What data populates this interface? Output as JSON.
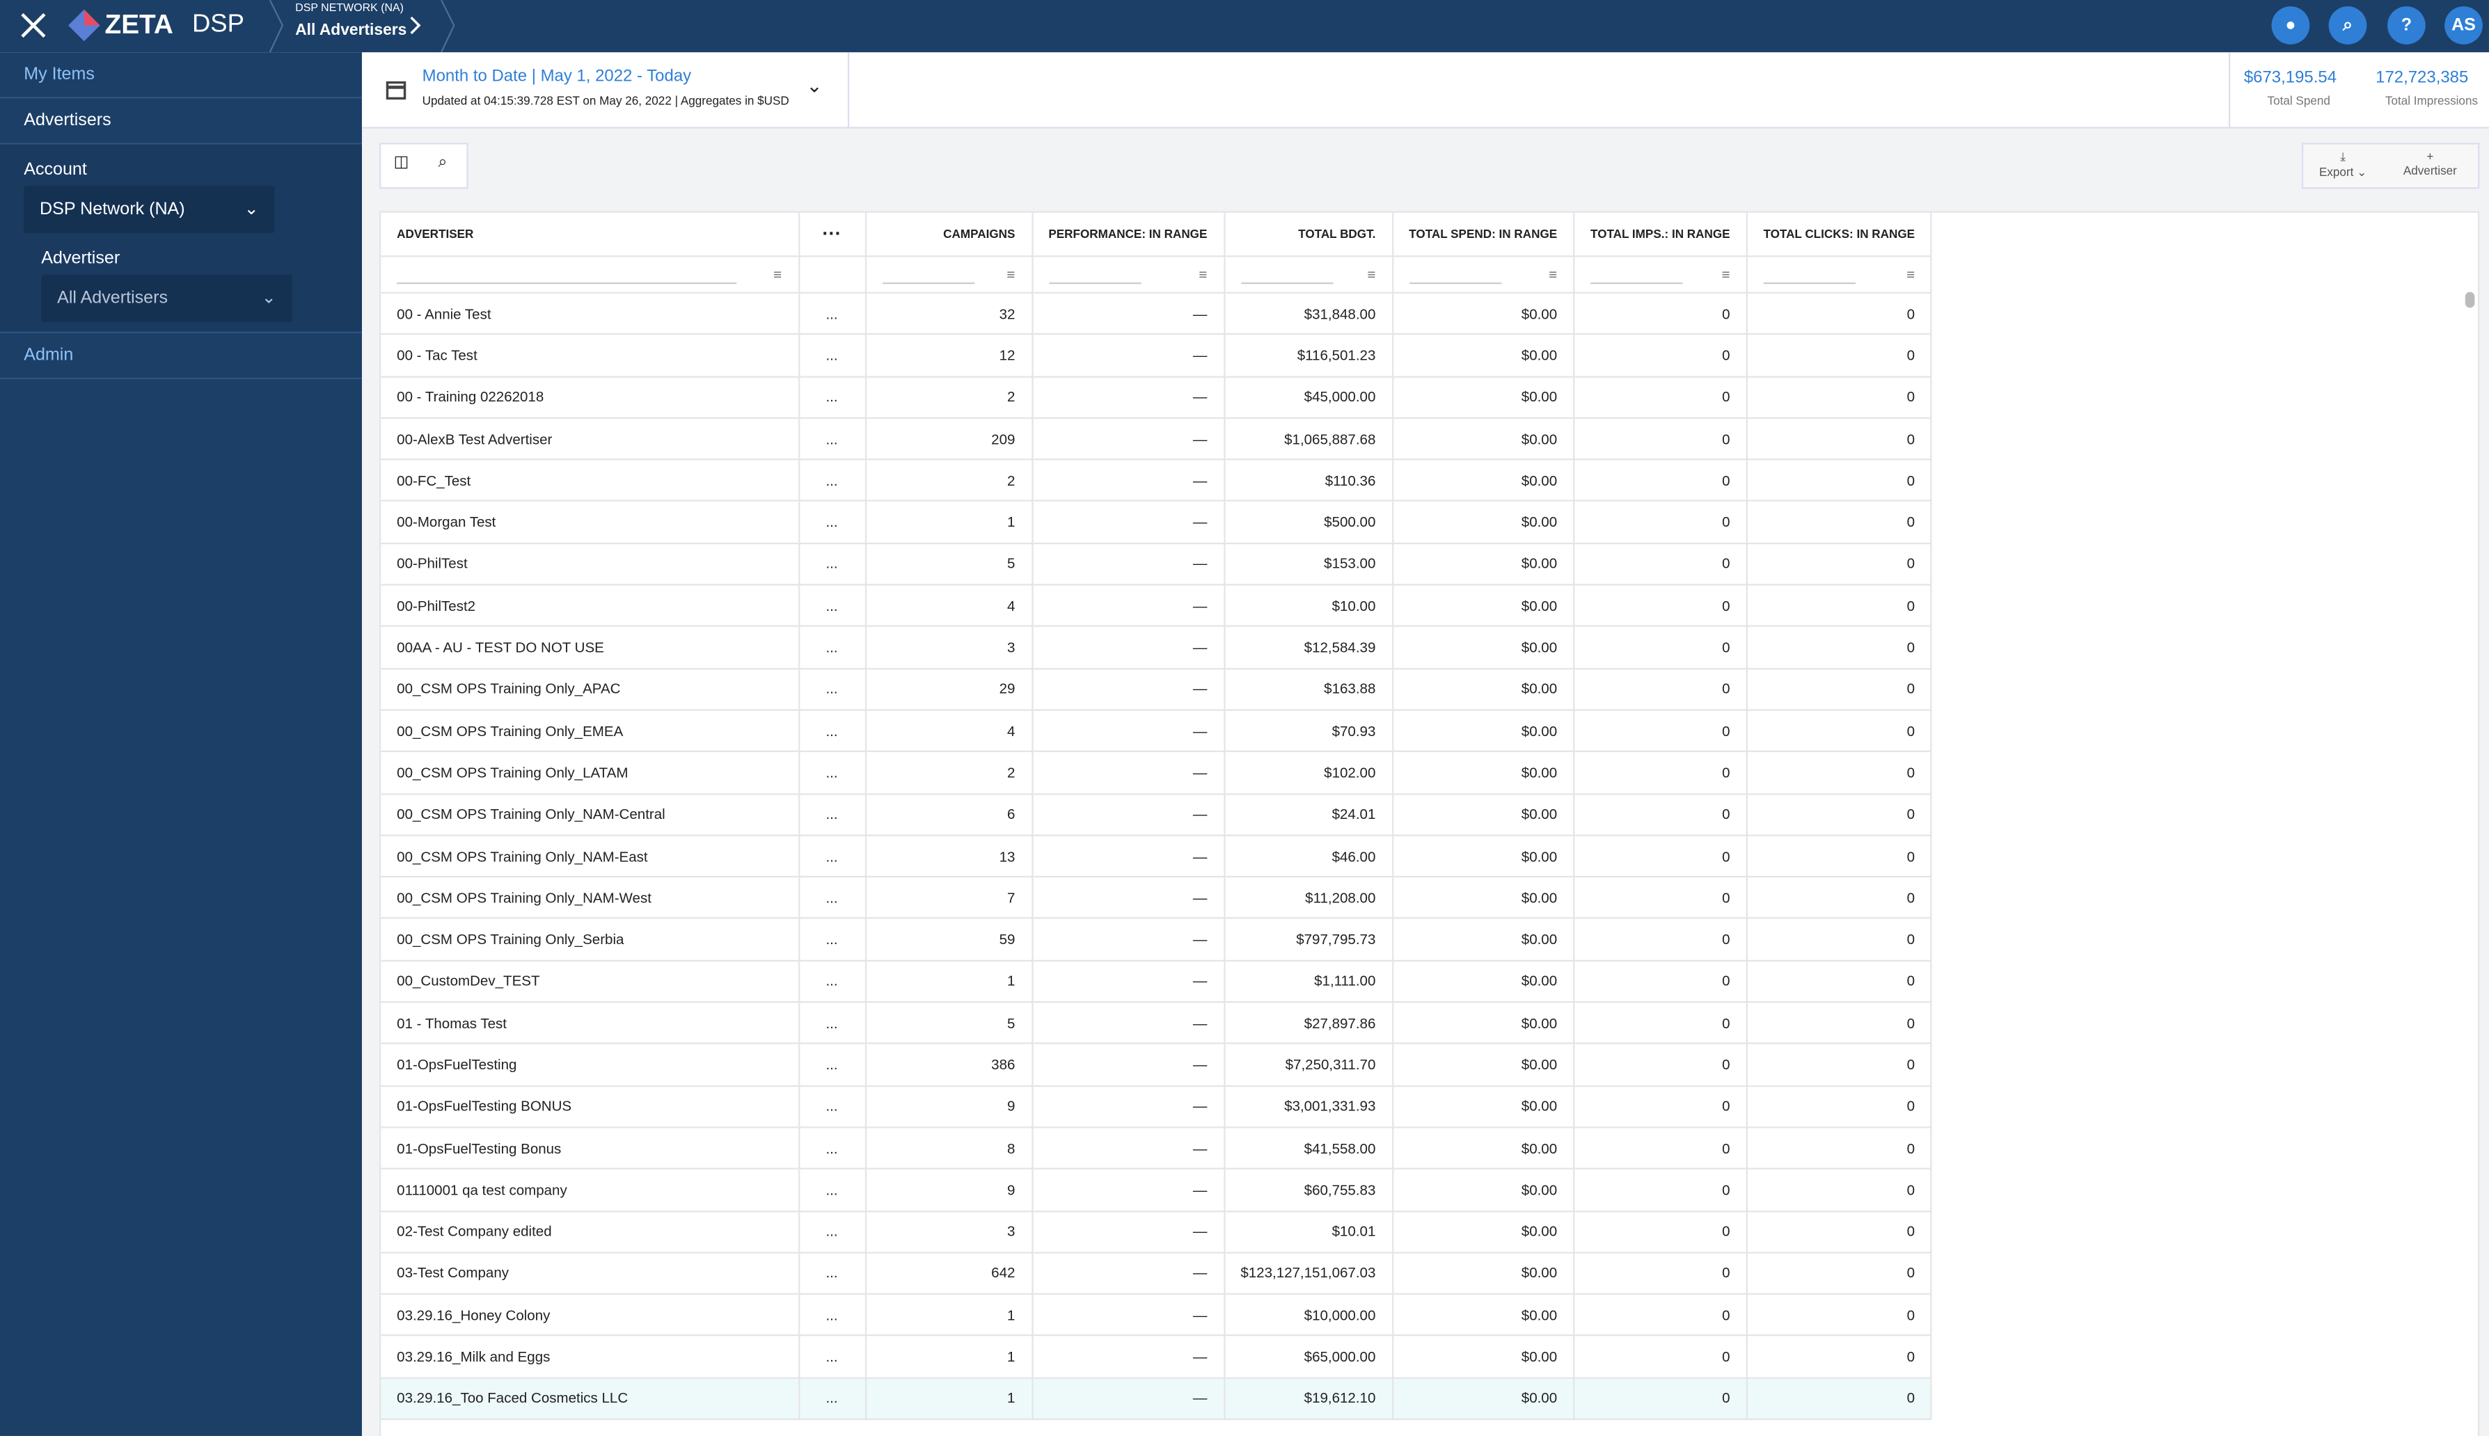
{
  "header": {
    "brand": "ZETA",
    "product": "DSP",
    "network": "DSP NETWORK (NA)",
    "crumb": "All Advertisers",
    "help": "?",
    "avatar": "AS"
  },
  "sidebar": {
    "my_items": "My Items",
    "advertisers": "Advertisers",
    "account_label": "Account",
    "account_value": "DSP Network (NA)",
    "advertiser_label": "Advertiser",
    "advertiser_value": "All Advertisers",
    "admin": "Admin"
  },
  "datebar": {
    "range": "Month to Date | May 1, 2022 - Today",
    "updated": "Updated at 04:15:39.728 EST on May 26, 2022 | Aggregates in $USD",
    "spend": "$673,195.54",
    "spend_label": "Total Spend",
    "imps": "172,723,385",
    "imps_label": "Total Impressions"
  },
  "toolbar": {
    "export": "Export",
    "add": "Advertiser"
  },
  "table": {
    "columns": [
      "ADVERTISER",
      "",
      "CAMPAIGNS",
      "PERFORMANCE: IN RANGE",
      "TOTAL BDGT.",
      "TOTAL SPEND: IN RANGE",
      "TOTAL IMPS.: IN RANGE",
      "TOTAL CLICKS: IN RANGE"
    ],
    "rows": [
      [
        "00 - Annie Test",
        "...",
        "32",
        "—",
        "$31,848.00",
        "$0.00",
        "0",
        "0"
      ],
      [
        "00 - Tac Test",
        "...",
        "12",
        "—",
        "$116,501.23",
        "$0.00",
        "0",
        "0"
      ],
      [
        "00 - Training 02262018",
        "...",
        "2",
        "—",
        "$45,000.00",
        "$0.00",
        "0",
        "0"
      ],
      [
        "00-AlexB Test Advertiser",
        "...",
        "209",
        "—",
        "$1,065,887.68",
        "$0.00",
        "0",
        "0"
      ],
      [
        "00-FC_Test",
        "...",
        "2",
        "—",
        "$110.36",
        "$0.00",
        "0",
        "0"
      ],
      [
        "00-Morgan Test",
        "...",
        "1",
        "—",
        "$500.00",
        "$0.00",
        "0",
        "0"
      ],
      [
        "00-PhilTest",
        "...",
        "5",
        "—",
        "$153.00",
        "$0.00",
        "0",
        "0"
      ],
      [
        "00-PhilTest2",
        "...",
        "4",
        "—",
        "$10.00",
        "$0.00",
        "0",
        "0"
      ],
      [
        "00AA - AU - TEST DO NOT USE",
        "...",
        "3",
        "—",
        "$12,584.39",
        "$0.00",
        "0",
        "0"
      ],
      [
        "00_CSM OPS Training Only_APAC",
        "...",
        "29",
        "—",
        "$163.88",
        "$0.00",
        "0",
        "0"
      ],
      [
        "00_CSM OPS Training Only_EMEA",
        "...",
        "4",
        "—",
        "$70.93",
        "$0.00",
        "0",
        "0"
      ],
      [
        "00_CSM OPS Training Only_LATAM",
        "...",
        "2",
        "—",
        "$102.00",
        "$0.00",
        "0",
        "0"
      ],
      [
        "00_CSM OPS Training Only_NAM-Central",
        "...",
        "6",
        "—",
        "$24.01",
        "$0.00",
        "0",
        "0"
      ],
      [
        "00_CSM OPS Training Only_NAM-East",
        "...",
        "13",
        "—",
        "$46.00",
        "$0.00",
        "0",
        "0"
      ],
      [
        "00_CSM OPS Training Only_NAM-West",
        "...",
        "7",
        "—",
        "$11,208.00",
        "$0.00",
        "0",
        "0"
      ],
      [
        "00_CSM OPS Training Only_Serbia",
        "...",
        "59",
        "—",
        "$797,795.73",
        "$0.00",
        "0",
        "0"
      ],
      [
        "00_CustomDev_TEST",
        "...",
        "1",
        "—",
        "$1,111.00",
        "$0.00",
        "0",
        "0"
      ],
      [
        "01 - Thomas Test",
        "...",
        "5",
        "—",
        "$27,897.86",
        "$0.00",
        "0",
        "0"
      ],
      [
        "01-OpsFuelTesting",
        "...",
        "386",
        "—",
        "$7,250,311.70",
        "$0.00",
        "0",
        "0"
      ],
      [
        "01-OpsFuelTesting BONUS",
        "...",
        "9",
        "—",
        "$3,001,331.93",
        "$0.00",
        "0",
        "0"
      ],
      [
        "01-OpsFuelTesting Bonus",
        "...",
        "8",
        "—",
        "$41,558.00",
        "$0.00",
        "0",
        "0"
      ],
      [
        "01110001 qa test company",
        "...",
        "9",
        "—",
        "$60,755.83",
        "$0.00",
        "0",
        "0"
      ],
      [
        "02-Test Company edited",
        "...",
        "3",
        "—",
        "$10.01",
        "$0.00",
        "0",
        "0"
      ],
      [
        "03-Test Company",
        "...",
        "642",
        "—",
        "$123,127,151,067.03",
        "$0.00",
        "0",
        "0"
      ],
      [
        "03.29.16_Honey Colony",
        "...",
        "1",
        "—",
        "$10,000.00",
        "$0.00",
        "0",
        "0"
      ],
      [
        "03.29.16_Milk and Eggs",
        "...",
        "1",
        "—",
        "$65,000.00",
        "$0.00",
        "0",
        "0"
      ],
      [
        "03.29.16_Too Faced Cosmetics LLC",
        "...",
        "1",
        "—",
        "$19,612.10",
        "$0.00",
        "0",
        "0"
      ]
    ]
  }
}
